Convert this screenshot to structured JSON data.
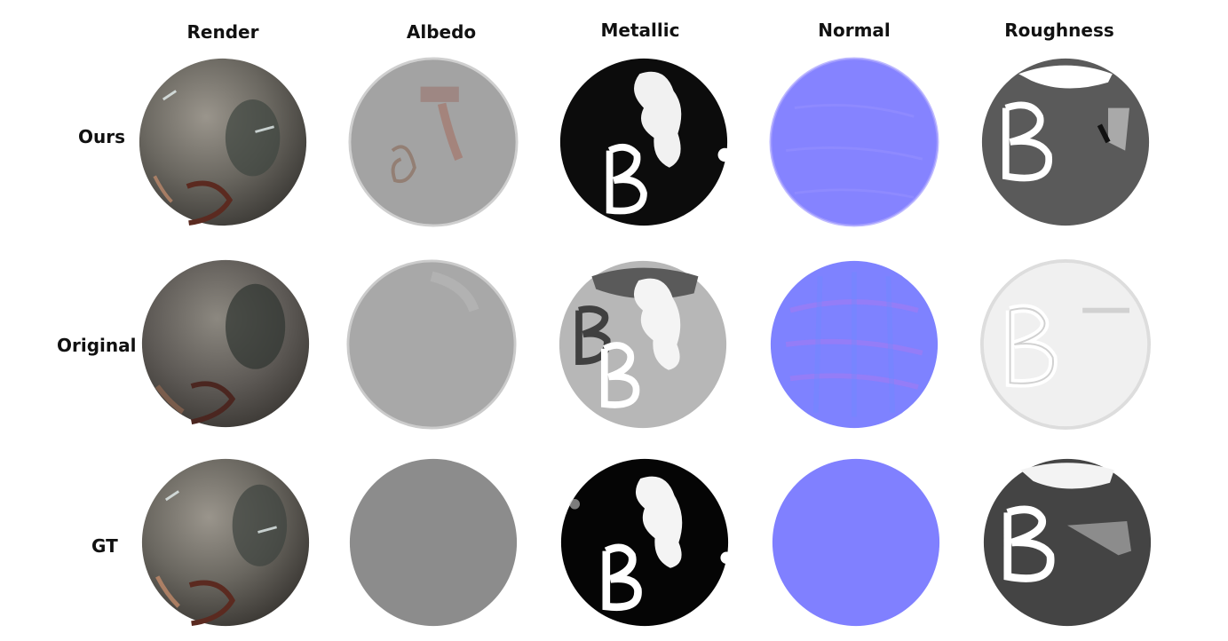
{
  "columns": [
    "Render",
    "Albedo",
    "Metallic",
    "Normal",
    "Roughness"
  ],
  "rows": [
    "Ours",
    "Original",
    "GT"
  ],
  "stroke_letter": "B",
  "colors": {
    "background": "#ffffff",
    "label_text": "#111111",
    "normal_blue": "#8080ff",
    "albedo_gray": "#8c8c8c",
    "render_base": "#6a6760"
  }
}
